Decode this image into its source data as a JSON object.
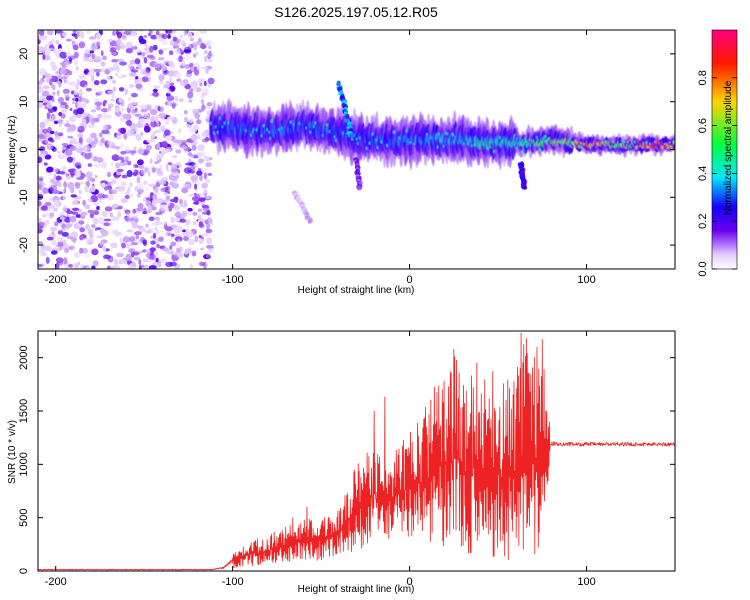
{
  "title": "S126.2025.197.05.12.R05",
  "chart_data": [
    {
      "type": "heatmap",
      "xlabel": "Height of straight line (km)",
      "ylabel": "Frequency (Hz)",
      "xlim": [
        -210,
        150
      ],
      "ylim": [
        -25,
        25
      ],
      "xticks": [
        -200,
        -100,
        0,
        100
      ],
      "yticks": [
        -20,
        -10,
        0,
        10,
        20
      ],
      "colorbar": {
        "label": "Normalized spectral amplitude",
        "range": [
          0,
          1
        ],
        "ticks": [
          0.0,
          0.2,
          0.4,
          0.6,
          0.8
        ],
        "tick_labels": [
          "0.0",
          "0.2",
          "0.4",
          "0.6",
          "0.8"
        ],
        "colormap": [
          "#ffffff",
          "#e2ccff",
          "#6a00f0",
          "#1400ff",
          "#00e6ff",
          "#00ff40",
          "#ffd400",
          "#ff1a00",
          "#ff0080"
        ]
      },
      "noise_region": {
        "x": [
          -210,
          -112
        ],
        "freq": [
          -25,
          25
        ],
        "amplitude": 0.12
      },
      "ridge": [
        {
          "x": -112,
          "freq": 5.0,
          "amplitude": 0.28
        },
        {
          "x": -100,
          "freq": 4.5,
          "amplitude": 0.3
        },
        {
          "x": -90,
          "freq": 4.0,
          "amplitude": 0.3
        },
        {
          "x": -80,
          "freq": 4.0,
          "amplitude": 0.3
        },
        {
          "x": -70,
          "freq": 4.0,
          "amplitude": 0.32
        },
        {
          "x": -60,
          "freq": 5.0,
          "amplitude": 0.3
        },
        {
          "x": -50,
          "freq": 4.0,
          "amplitude": 0.3
        },
        {
          "x": -40,
          "freq": 3.5,
          "amplitude": 0.3
        },
        {
          "x": -30,
          "freq": 2.5,
          "amplitude": 0.28
        },
        {
          "x": -20,
          "freq": 2.0,
          "amplitude": 0.3
        },
        {
          "x": -10,
          "freq": 2.0,
          "amplitude": 0.32
        },
        {
          "x": 0,
          "freq": 2.0,
          "amplitude": 0.35
        },
        {
          "x": 10,
          "freq": 2.0,
          "amplitude": 0.35
        },
        {
          "x": 20,
          "freq": 2.0,
          "amplitude": 0.38
        },
        {
          "x": 30,
          "freq": 2.0,
          "amplitude": 0.4
        },
        {
          "x": 40,
          "freq": 1.5,
          "amplitude": 0.45
        },
        {
          "x": 50,
          "freq": 1.5,
          "amplitude": 0.45
        },
        {
          "x": 60,
          "freq": 1.5,
          "amplitude": 0.45
        },
        {
          "x": 70,
          "freq": 1.5,
          "amplitude": 0.55
        },
        {
          "x": 80,
          "freq": 2.0,
          "amplitude": 0.6
        },
        {
          "x": 90,
          "freq": 1.5,
          "amplitude": 0.6
        },
        {
          "x": 100,
          "freq": 1.0,
          "amplitude": 0.8
        },
        {
          "x": 110,
          "freq": 1.0,
          "amplitude": 0.75
        },
        {
          "x": 120,
          "freq": 1.0,
          "amplitude": 0.6
        },
        {
          "x": 130,
          "freq": 1.0,
          "amplitude": 0.75
        },
        {
          "x": 140,
          "freq": 1.0,
          "amplitude": 0.85
        },
        {
          "x": 150,
          "freq": 1.0,
          "amplitude": 0.8
        }
      ],
      "branches": [
        {
          "x": [
            -40,
            -33
          ],
          "freq": [
            14,
            3
          ],
          "amplitude": 0.35
        },
        {
          "x": [
            -30,
            -28
          ],
          "freq": [
            -2,
            -8
          ],
          "amplitude": 0.15
        },
        {
          "x": [
            -65,
            -56
          ],
          "freq": [
            -9,
            -15
          ],
          "amplitude": 0.08
        },
        {
          "x": [
            63,
            65
          ],
          "freq": [
            -3,
            -8
          ],
          "amplitude": 0.25
        }
      ]
    },
    {
      "type": "line",
      "xlabel": "Height of straight line (km)",
      "ylabel": "SNR (10 * v/v)",
      "xlim": [
        -210,
        150
      ],
      "ylim": [
        0,
        2250
      ],
      "xticks": [
        -200,
        -100,
        0,
        100
      ],
      "yticks": [
        0,
        500,
        1000,
        1500,
        2000
      ],
      "color": "#ee2222",
      "envelope": {
        "x": [
          -210,
          -150,
          -112,
          -105,
          -100,
          -90,
          -80,
          -70,
          -60,
          -50,
          -40,
          -30,
          -20,
          -10,
          0,
          10,
          20,
          25,
          30,
          40,
          50,
          60,
          65,
          70,
          75,
          80,
          90,
          100,
          110,
          120,
          130,
          140,
          150
        ],
        "low": [
          5,
          5,
          5,
          10,
          30,
          40,
          60,
          80,
          100,
          100,
          150,
          180,
          250,
          300,
          300,
          250,
          200,
          150,
          150,
          100,
          100,
          100,
          80,
          70,
          100,
          1150,
          1150,
          1150,
          1150,
          1150,
          1150,
          1150,
          1150
        ],
        "high": [
          20,
          20,
          20,
          50,
          160,
          280,
          350,
          420,
          480,
          500,
          600,
          1000,
          1200,
          1100,
          1300,
          1600,
          2000,
          2080,
          1800,
          1900,
          1750,
          1900,
          2250,
          2200,
          2200,
          1230,
          1220,
          1220,
          1220,
          1220,
          1220,
          1220,
          1220
        ]
      },
      "peaks": [
        {
          "x": -66,
          "y": 500
        },
        {
          "x": -58,
          "y": 600
        },
        {
          "x": -20,
          "y": 1500
        },
        {
          "x": -14,
          "y": 1630
        },
        {
          "x": 25,
          "y": 2080
        },
        {
          "x": 38,
          "y": 1950
        },
        {
          "x": 47,
          "y": 1870
        },
        {
          "x": 63,
          "y": 2230
        },
        {
          "x": 66,
          "y": 2180
        },
        {
          "x": 75,
          "y": 2170
        }
      ]
    }
  ]
}
